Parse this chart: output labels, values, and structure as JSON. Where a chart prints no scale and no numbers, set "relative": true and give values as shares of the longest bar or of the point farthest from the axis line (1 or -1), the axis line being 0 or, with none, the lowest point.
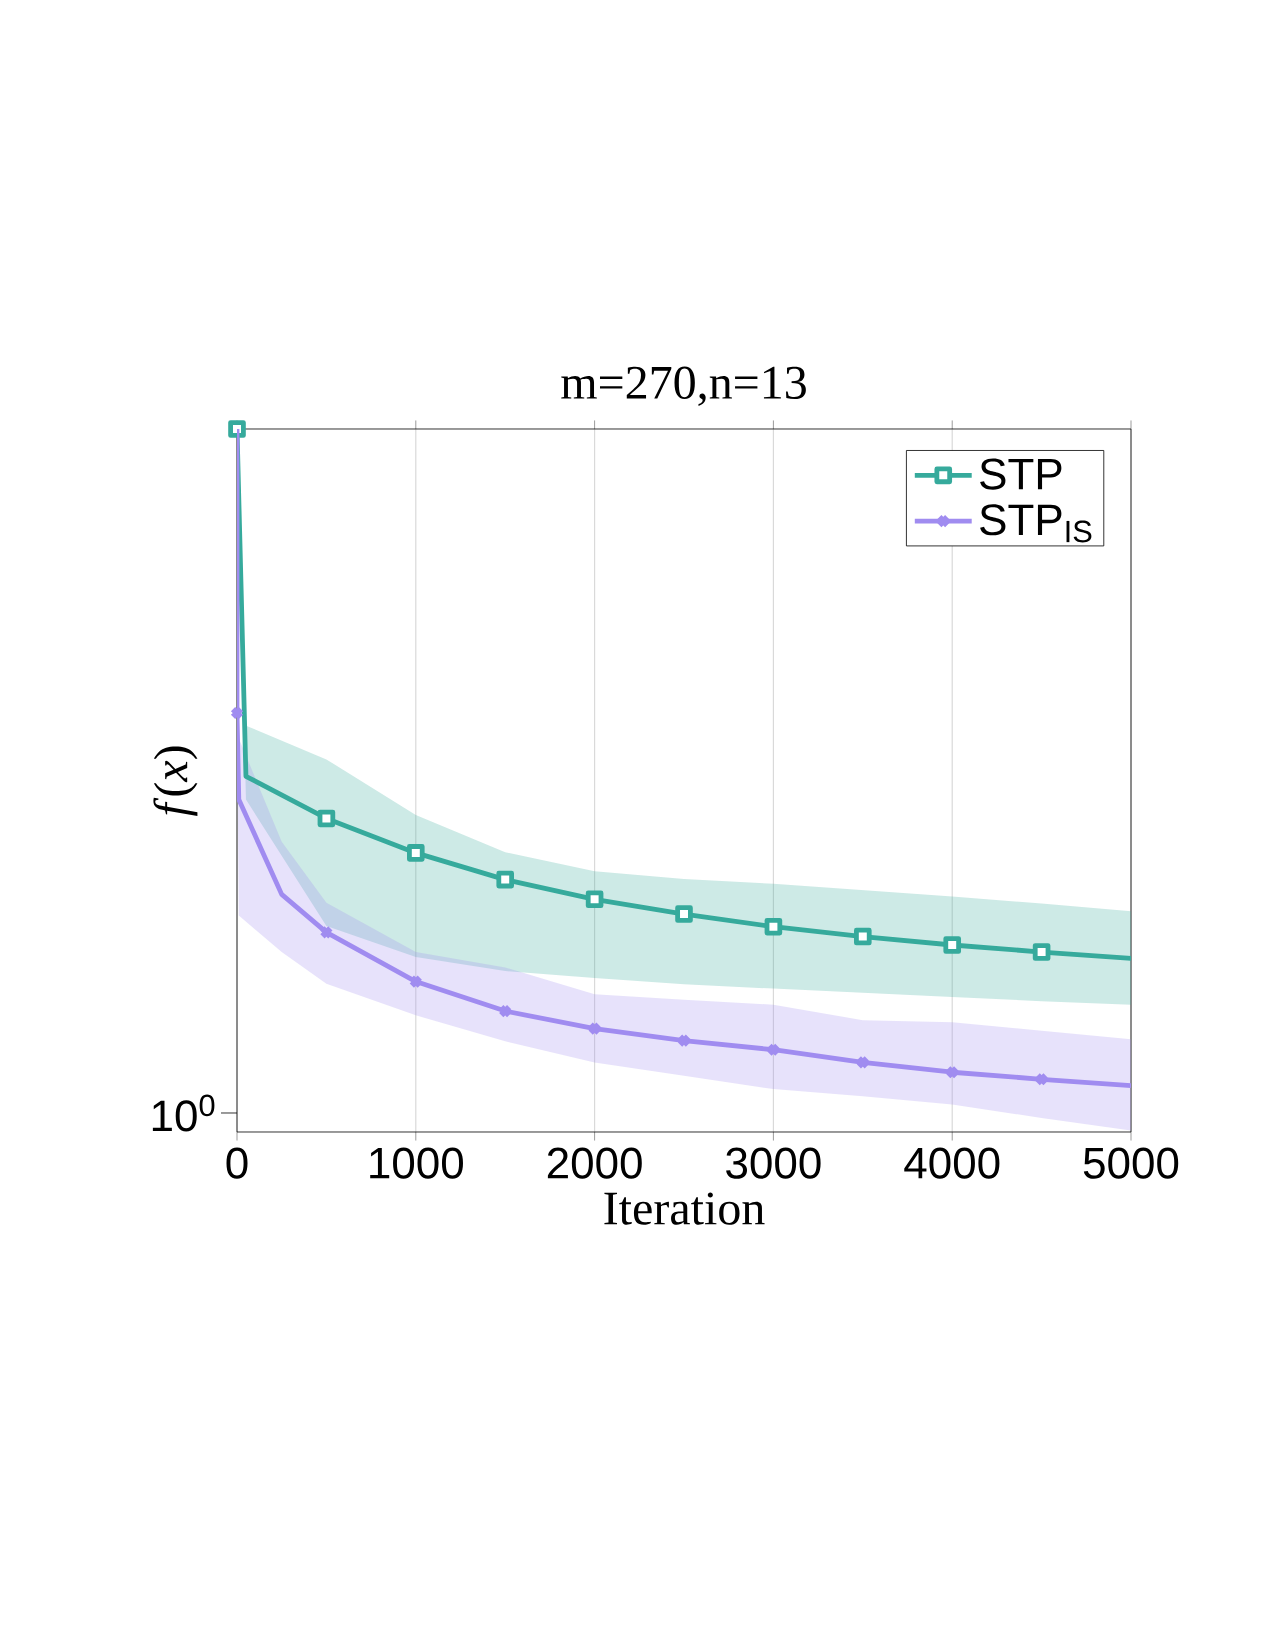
{
  "chart_data": {
    "type": "line",
    "title": "m=270,n=13",
    "xlabel": "Iteration",
    "ylabel": "*f*(*x*)",
    "relative": true,
    "xlim": [
      0,
      5000
    ],
    "xticks": [
      0,
      1000,
      2000,
      3000,
      4000,
      5000
    ],
    "annotations": [
      "10$^{0}$"
    ],
    "grid": true,
    "legend": "top right",
    "line_style": "solid",
    "series": [
      {
        "name": "STP",
        "color": "#36aa9c",
        "marker": "square",
        "x": [
          0,
          50,
          500,
          1000,
          1500,
          2000,
          2500,
          3000,
          3500,
          4000,
          4500,
          5000
        ],
        "values": [
          1.0,
          0.506,
          0.446,
          0.397,
          0.359,
          0.331,
          0.31,
          0.292,
          0.278,
          0.266,
          0.256,
          0.247
        ],
        "lower": [
          1.0,
          0.473,
          0.293,
          0.249,
          0.229,
          0.219,
          0.21,
          0.204,
          0.198,
          0.192,
          0.186,
          0.181
        ],
        "upper": [
          1.0,
          0.578,
          0.53,
          0.451,
          0.398,
          0.371,
          0.36,
          0.353,
          0.344,
          0.335,
          0.325,
          0.314
        ]
      },
      {
        "name": "STP$_{IS}$",
        "color": "#a08cf0",
        "marker": "cross",
        "x": [
          0,
          0,
          10,
          250,
          500,
          1000,
          1500,
          2000,
          2500,
          3000,
          3500,
          4000,
          4500,
          5000
        ],
        "values": [
          1.0,
          0.596,
          0.473,
          0.338,
          0.284,
          0.214,
          0.172,
          0.147,
          0.13,
          0.117,
          0.099,
          0.085,
          0.075,
          0.066
        ],
        "lower": [
          1.0,
          0.596,
          0.308,
          0.256,
          0.211,
          0.166,
          0.129,
          0.099,
          0.08,
          0.061,
          0.051,
          0.039,
          0.02,
          0.002
        ],
        "upper": [
          1.0,
          0.596,
          0.56,
          0.413,
          0.326,
          0.256,
          0.234,
          0.196,
          0.188,
          0.181,
          0.159,
          0.156,
          0.144,
          0.132
        ]
      }
    ]
  }
}
